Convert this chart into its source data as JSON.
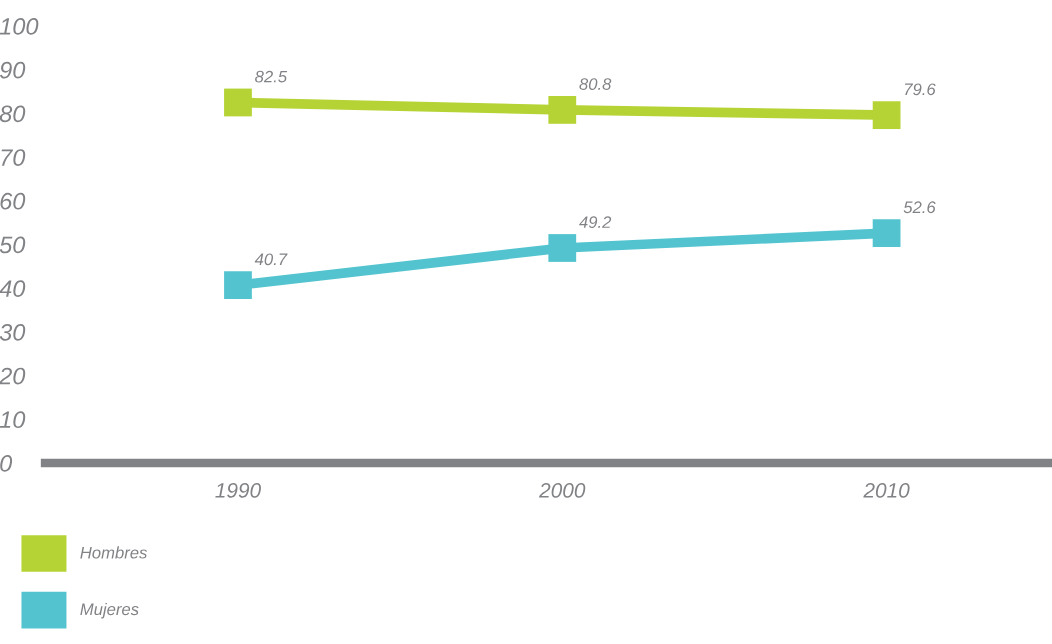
{
  "chart_data": {
    "type": "line",
    "categories": [
      "1990",
      "2000",
      "2010"
    ],
    "series": [
      {
        "name": "Hombres",
        "color": "#b5d334",
        "values": [
          82.5,
          80.8,
          79.6
        ]
      },
      {
        "name": "Mujeres",
        "color": "#53c4cf",
        "values": [
          40.7,
          49.2,
          52.6
        ]
      }
    ],
    "ylim": [
      0,
      100
    ],
    "yticks": [
      0,
      10,
      20,
      30,
      40,
      50,
      60,
      70,
      80,
      90,
      100
    ],
    "grid": false,
    "legend": "bottom left",
    "marker": "square",
    "line_style": "solid",
    "data_labels": true
  }
}
